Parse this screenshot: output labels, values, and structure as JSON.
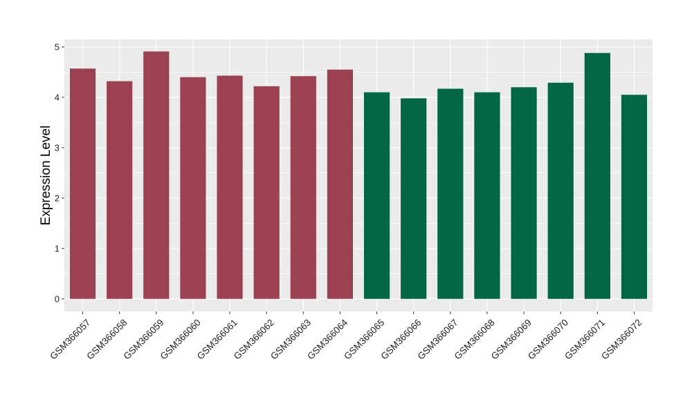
{
  "chart_data": {
    "type": "bar",
    "title": "",
    "xlabel": "",
    "ylabel": "Expression Level",
    "ylim": [
      -0.25,
      5.15
    ],
    "yticks": [
      0,
      1,
      2,
      3,
      4,
      5
    ],
    "grid": true,
    "legend": "none",
    "colors": {
      "panel": "#ebebeb",
      "grid": "#ffffff",
      "group_a": "#9b4150",
      "group_b": "#006644"
    },
    "categories": [
      "GSM366057",
      "GSM366058",
      "GSM366059",
      "GSM366060",
      "GSM366061",
      "GSM366062",
      "GSM366063",
      "GSM366064",
      "GSM366065",
      "GSM366066",
      "GSM366067",
      "GSM366068",
      "GSM366069",
      "GSM366070",
      "GSM366071",
      "GSM366072"
    ],
    "values": [
      4.57,
      4.32,
      4.91,
      4.4,
      4.43,
      4.22,
      4.42,
      4.55,
      4.1,
      3.98,
      4.17,
      4.1,
      4.2,
      4.29,
      4.88,
      4.05
    ],
    "groups": [
      "a",
      "a",
      "a",
      "a",
      "a",
      "a",
      "a",
      "a",
      "b",
      "b",
      "b",
      "b",
      "b",
      "b",
      "b",
      "b"
    ]
  }
}
